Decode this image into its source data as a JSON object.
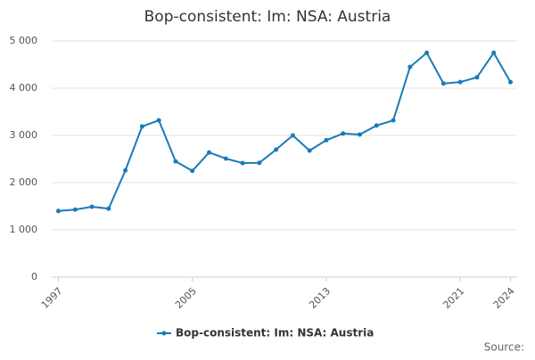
{
  "chart_data": {
    "type": "line",
    "title": "Bop-consistent: Im: NSA: Austria",
    "x": [
      1997,
      1998,
      1999,
      2000,
      2001,
      2002,
      2003,
      2004,
      2005,
      2006,
      2007,
      2008,
      2009,
      2010,
      2011,
      2012,
      2013,
      2014,
      2015,
      2016,
      2017,
      2018,
      2019,
      2020,
      2021,
      2022,
      2023,
      2024
    ],
    "series": [
      {
        "name": "Bop-consistent: Im: NSA: Austria",
        "color": "#1a7ab8",
        "values": [
          1400,
          1430,
          1490,
          1450,
          2260,
          3190,
          3320,
          2450,
          2250,
          2640,
          2510,
          2415,
          2420,
          2700,
          3000,
          2680,
          2900,
          3040,
          3020,
          3210,
          3320,
          4450,
          4750,
          4100,
          4130,
          4230,
          4750,
          4130
        ]
      }
    ],
    "xlim": [
      1996.6,
      2024.4
    ],
    "xticks": [
      1997,
      2005,
      2013,
      2021,
      2024
    ],
    "ylim": [
      0,
      5000
    ],
    "yticks": [
      0,
      {
        "value": 1000,
        "label": "1 000"
      },
      {
        "value": 2000,
        "label": "2 000"
      },
      {
        "value": 3000,
        "label": "3 000"
      },
      {
        "value": 4000,
        "label": "4 000"
      },
      {
        "value": 5000,
        "label": "5 000"
      }
    ],
    "grid": true,
    "source": "Source:"
  }
}
